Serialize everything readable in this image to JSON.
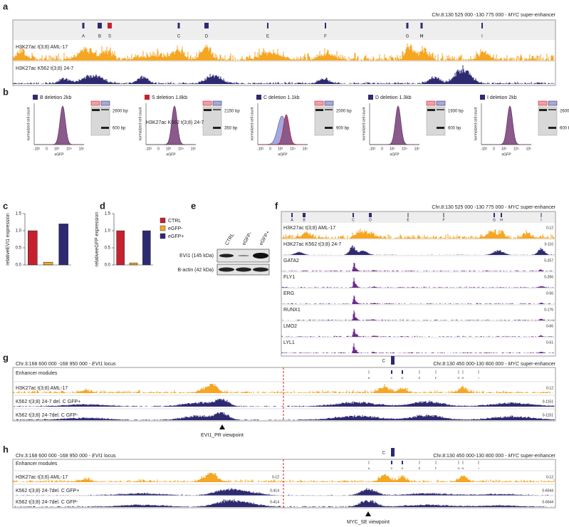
{
  "a": {
    "letter": "a",
    "locus": {
      "pre": "Chr.8:130 525 000 -130 775 000  - ",
      "gene": "MYC",
      "post": " super-enhancer"
    },
    "modules": [
      "A",
      "B",
      "S",
      "C",
      "D",
      "E",
      "F",
      "G",
      "H",
      "I"
    ],
    "tracks": [
      "H3K27ac t(3;8) AML-17",
      "H3K27ac K562 t(3;8) 24-7"
    ]
  },
  "b": {
    "letter": "b",
    "ylabel": "normalized cell count",
    "xlabel": "eGFP",
    "xticks": [
      "-10³",
      "0",
      "10³",
      "10⁴",
      "10⁵"
    ],
    "overlay": "H3K27ac K562 t(3;8) 24-7",
    "plots": [
      {
        "title": "B deletion 2kb",
        "bands": [
          "2600 bp",
          "600 bp"
        ]
      },
      {
        "title": "S deletion 1.8kb",
        "bands": [
          "2150 bp",
          "350 bp"
        ]
      },
      {
        "title": "C deletion 1.1kb",
        "bands": [
          "2000 bp",
          "900 bp"
        ]
      },
      {
        "title": "D deletion 1.3kb",
        "bands": [
          "1930 bp",
          "600 bp"
        ]
      },
      {
        "title": "I deletion 2kb",
        "bands": [
          "2600 bp",
          "600 bp"
        ]
      }
    ]
  },
  "legend": {
    "names": [
      "CTRL",
      "eGFP-",
      "eGFP+"
    ],
    "colors": [
      "#c8202e",
      "#f5a623",
      "#2e2a72"
    ]
  },
  "c": {
    "letter": "c",
    "type": "bar",
    "ylabel": "relativeEVI1 expression",
    "values": [
      1.0,
      0.08,
      1.2
    ],
    "ylim": [
      0,
      1.5
    ],
    "yticks": [
      {
        "value": 0,
        "label": "0.0"
      },
      {
        "value": 0.5,
        "label": "0.5"
      },
      {
        "value": 1,
        "label": "1.0"
      },
      {
        "value": 1.5,
        "label": "1.5"
      }
    ]
  },
  "d": {
    "letter": "d",
    "type": "bar",
    "ylabel": "relativeeGFP expression",
    "values": [
      1.0,
      0.06,
      1.0
    ],
    "ylim": [
      0,
      1.5
    ],
    "yticks": [
      {
        "value": 0,
        "label": "0.0"
      },
      {
        "value": 0.5,
        "label": "0.5"
      },
      {
        "value": 1,
        "label": "1.0"
      },
      {
        "value": 1.5,
        "label": "1.5"
      }
    ]
  },
  "e": {
    "letter": "e",
    "columns": [
      "CTRL",
      "eGFP-",
      "eGFP+"
    ],
    "rows": [
      "EVI1 (145 kDa)",
      "B-actin (42 kDa)"
    ]
  },
  "f": {
    "letter": "f",
    "locus": {
      "pre": "Chr.8:130 525 000 -130 775 000  - ",
      "gene": "MYC",
      "post": " super-enhancer"
    },
    "modules": [
      "A",
      "B",
      "C",
      "D",
      "E",
      "F",
      "G",
      "H",
      "I"
    ],
    "tracks": [
      {
        "name": "H3K27ac t(3;8) AML-17",
        "range": "0-12"
      },
      {
        "name": "H3K27ac K562 t(3;8) 24-7",
        "range": "0-110"
      },
      {
        "name": "GATA2",
        "range": "0-257"
      },
      {
        "name": "FLY1",
        "range": "0-266"
      },
      {
        "name": "ERG",
        "range": "0-56"
      },
      {
        "name": "RUNX1",
        "range": "0-176"
      },
      {
        "name": "LMO2",
        "range": "0-66"
      },
      {
        "name": "LYL1",
        "range": "0-51"
      }
    ]
  },
  "g": {
    "letter": "g",
    "left_locus": {
      "pre": "Chr.3:168 600 000 -168 950 000 - ",
      "gene": "EVI1",
      "post": " locus"
    },
    "right_locus": {
      "pre": "Chr.8:130 450 000-130 800 000 - ",
      "gene": "MYC",
      "post": " super-enhancer"
    },
    "marker": "C",
    "modules": [
      "A",
      "C",
      "D",
      "E",
      "F",
      "G",
      "H",
      "I"
    ],
    "tracks": [
      {
        "name": "Enhancer modules"
      },
      {
        "name": "H3K27ac t(3;8) AML-17",
        "right_range": "0-12"
      },
      {
        "name": "K562  t(3;8) 24-7 del. C GFP+",
        "right_range": "0-1151"
      },
      {
        "name": "K562  t(3;8) 24-7del. C GFP-",
        "right_range": "0-1151"
      }
    ],
    "viewpoint": "EVI1_PR viewpoint"
  },
  "h": {
    "letter": "h",
    "left_locus": {
      "pre": "Chr.3:168 600 000 -168 950 000 - ",
      "gene": "EVI1",
      "post": " locus"
    },
    "right_locus": {
      "pre": "Chr.8:130 450 000-130 800 000 - ",
      "gene": "MYC",
      "post": " super-enhancer"
    },
    "marker": "C",
    "modules": [
      "A",
      "C",
      "D",
      "E",
      "F",
      "G",
      "H",
      "I"
    ],
    "tracks": [
      {
        "name": "Enhancer modules"
      },
      {
        "name": "H3K27ac t(3;8) AML-17",
        "left_range": "0-12",
        "right_range": "0-12"
      },
      {
        "name": "K562  t(3;8) 24-7del. C GFP+",
        "left_range": "0-414",
        "right_range": "0-6044"
      },
      {
        "name": "K562  t(3;8) 24-7del. C GFP-",
        "left_range": "0-414",
        "right_range": "0-6044"
      }
    ],
    "viewpoint": "MYC_SE viewpoint"
  }
}
